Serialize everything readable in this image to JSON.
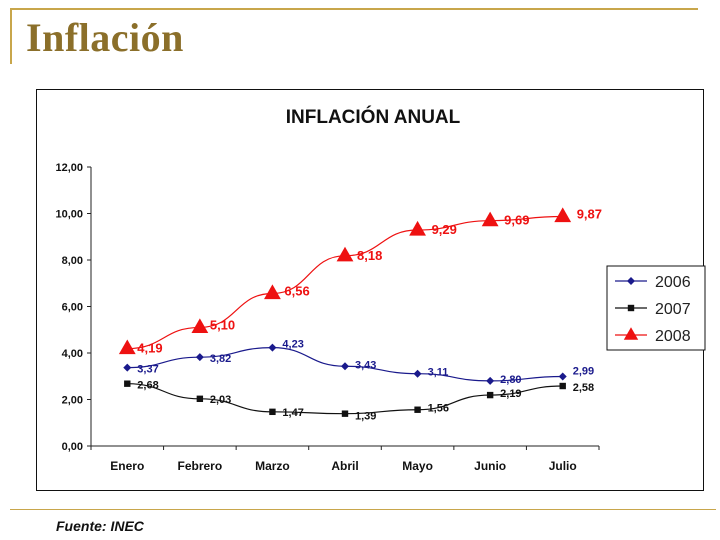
{
  "slide": {
    "title": "Inflación",
    "source": "Fuente: INEC"
  },
  "colors": {
    "s2006": "#1a1a8c",
    "s2007": "#111111",
    "s2008": "#ee1111",
    "accent": "#c8a64b"
  },
  "chart_data": {
    "type": "line",
    "title": "INFLACIÓN ANUAL",
    "categories": [
      "Enero",
      "Febrero",
      "Marzo",
      "Abril",
      "Mayo",
      "Junio",
      "Julio"
    ],
    "ylim": [
      0,
      12
    ],
    "yticks": [
      "0,00",
      "2,00",
      "4,00",
      "6,00",
      "8,00",
      "10,00",
      "12,00"
    ],
    "legend_position": "right",
    "series": [
      {
        "name": "2006",
        "marker": "diamond",
        "values": [
          3.37,
          3.82,
          4.23,
          3.43,
          3.11,
          2.8,
          2.99
        ],
        "labels": [
          "3,37",
          "3,82",
          "4,23",
          "3,43",
          "3,11",
          "2,80",
          "2,99"
        ]
      },
      {
        "name": "2007",
        "marker": "square",
        "values": [
          2.68,
          2.03,
          1.47,
          1.39,
          1.56,
          2.19,
          2.58
        ],
        "labels": [
          "2,68",
          "2,03",
          "1,47",
          "1,39",
          "1,56",
          "2,19",
          "2,58"
        ]
      },
      {
        "name": "2008",
        "marker": "triangle",
        "values": [
          4.19,
          5.1,
          6.56,
          8.18,
          9.29,
          9.69,
          9.87
        ],
        "labels": [
          "4,19",
          "5,10",
          "6,56",
          "8,18",
          "9,29",
          "9,69",
          "9,87"
        ]
      }
    ]
  }
}
